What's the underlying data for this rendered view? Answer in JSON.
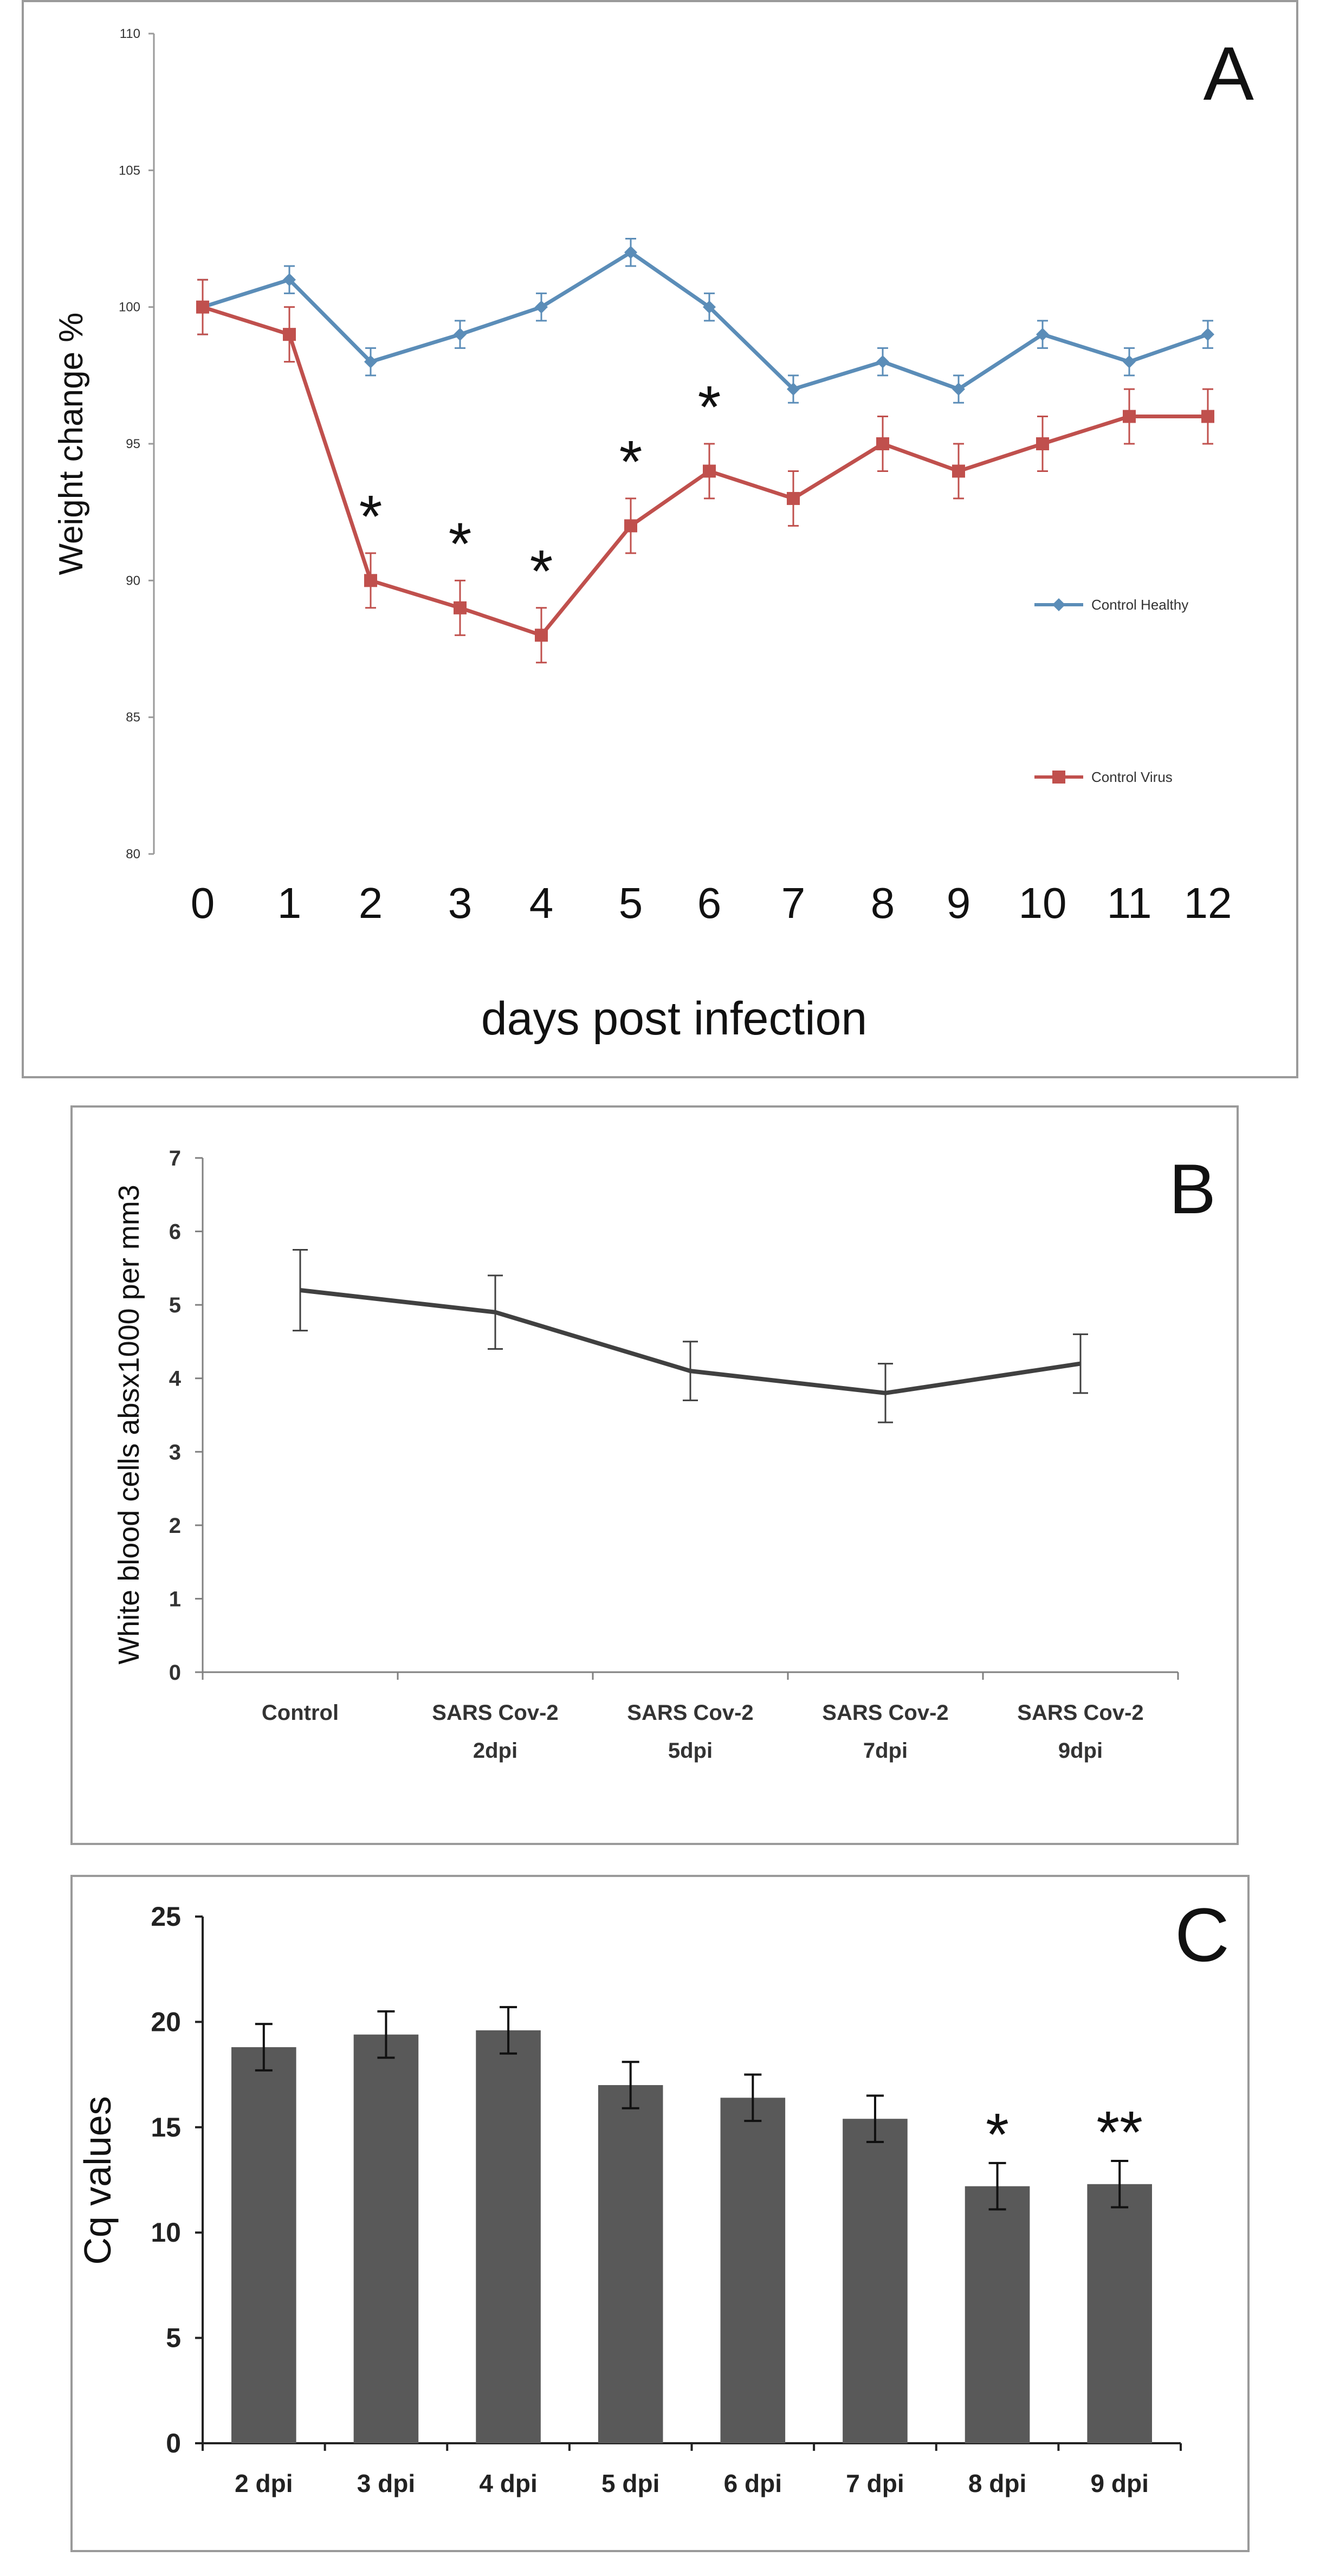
{
  "chart_data": [
    {
      "panel": "A",
      "type": "line",
      "panel_label": "A",
      "xlabel": "days post infection",
      "ylabel": "Weight change %",
      "ylim": [
        80,
        110
      ],
      "yticks": [
        80,
        85,
        90,
        95,
        100,
        105,
        110
      ],
      "categories": [
        "0",
        "1",
        "2",
        "3",
        "4",
        "5",
        "6",
        "7",
        "8",
        "9",
        "10",
        "11",
        "12"
      ],
      "series": [
        {
          "name": "Control Healthy",
          "color": "#5b8db8",
          "values": [
            100,
            101,
            98,
            99,
            100,
            102,
            100,
            97,
            98,
            97,
            99,
            98,
            99
          ],
          "error": [
            1,
            0.5,
            0.5,
            0.5,
            0.5,
            0.5,
            0.5,
            0.5,
            0.5,
            0.5,
            0.5,
            0.5,
            0.5
          ]
        },
        {
          "name": "Control Virus",
          "color": "#c0504d",
          "values": [
            100,
            99,
            90,
            89,
            88,
            92,
            94,
            93,
            95,
            94,
            95,
            96,
            96
          ],
          "error": [
            1,
            1,
            1,
            1,
            1,
            1,
            1,
            1,
            1,
            1,
            1,
            1,
            1
          ]
        }
      ],
      "significance": [
        {
          "index": 2,
          "label": "*"
        },
        {
          "index": 3,
          "label": "*"
        },
        {
          "index": 4,
          "label": "*"
        },
        {
          "index": 5,
          "label": "*"
        },
        {
          "index": 6,
          "label": "*"
        }
      ]
    },
    {
      "panel": "B",
      "type": "line",
      "panel_label": "B",
      "xlabel": "",
      "ylabel": "White blood cells absx1000 per mm3",
      "ylim": [
        0,
        7
      ],
      "yticks": [
        0,
        1,
        2,
        3,
        4,
        5,
        6,
        7
      ],
      "categories": [
        [
          "Control"
        ],
        [
          "SARS Cov-2",
          "2dpi"
        ],
        [
          "SARS Cov-2",
          "5dpi"
        ],
        [
          "SARS Cov-2",
          "7dpi"
        ],
        [
          "SARS Cov-2",
          "9dpi"
        ]
      ],
      "series": [
        {
          "name": "WBC",
          "color": "#404040",
          "values": [
            5.2,
            4.9,
            4.1,
            3.8,
            4.2
          ],
          "error": [
            0.55,
            0.5,
            0.4,
            0.4,
            0.4
          ]
        }
      ]
    },
    {
      "panel": "C",
      "type": "bar",
      "panel_label": "C",
      "xlabel": "",
      "ylabel": "Cq values",
      "ylim": [
        0,
        25
      ],
      "yticks": [
        0,
        5,
        10,
        15,
        20,
        25
      ],
      "categories": [
        "2 dpi",
        "3 dpi",
        "4 dpi",
        "5 dpi",
        "6 dpi",
        "7 dpi",
        "8 dpi",
        "9 dpi"
      ],
      "series": [
        {
          "name": "Cq",
          "color": "#595959",
          "values": [
            18.8,
            19.4,
            19.6,
            17.0,
            16.4,
            15.4,
            12.2,
            12.3
          ],
          "error": [
            1.1,
            1.1,
            1.1,
            1.1,
            1.1,
            1.1,
            1.1,
            1.1
          ]
        }
      ],
      "significance": [
        {
          "index": 6,
          "label": "*"
        },
        {
          "index": 7,
          "label": "**"
        }
      ]
    }
  ]
}
